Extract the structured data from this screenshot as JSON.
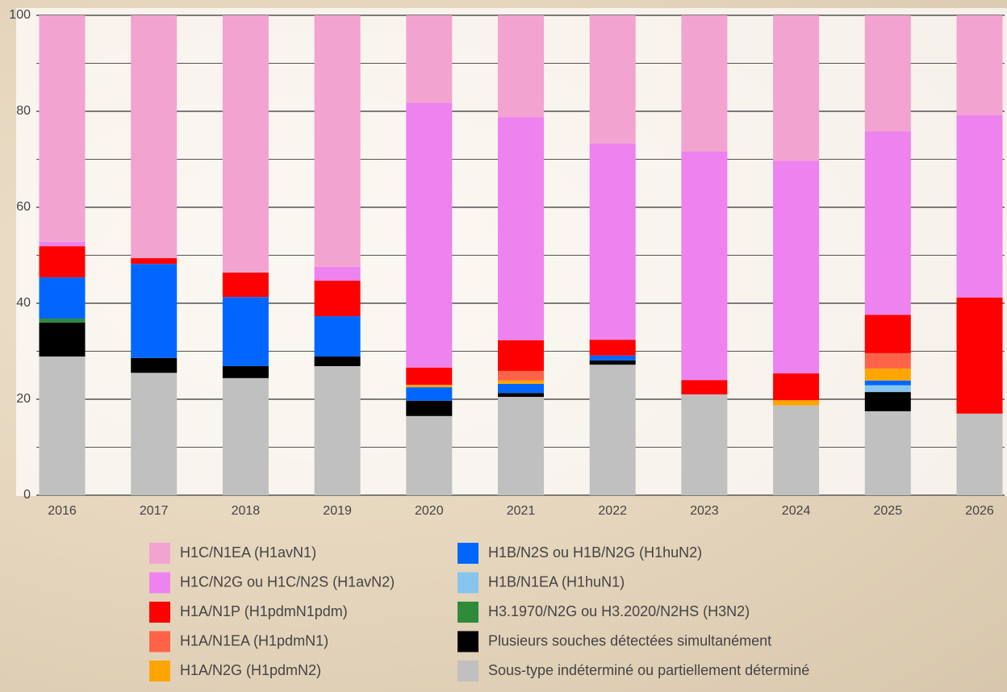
{
  "chart_data": {
    "type": "stacked_bar",
    "categories": [
      "2016",
      "2017",
      "2018",
      "2019",
      "2020",
      "2021",
      "2022",
      "2023",
      "2024",
      "2025",
      "2026"
    ],
    "ylim": [
      0,
      100
    ],
    "yticks": [
      0,
      20,
      40,
      60,
      80,
      100
    ],
    "yminor": [
      10,
      30,
      50,
      70,
      90
    ],
    "grid": true,
    "series": [
      {
        "name": "H1C/N1EA (H1avN1)",
        "color": "#f2a3d0",
        "values": [
          47.2,
          50.6,
          53.6,
          52.4,
          18.2,
          21.2,
          26.7,
          28.4,
          30.3,
          24.2,
          20.8
        ]
      },
      {
        "name": "H1C/N2G ou H1C/N2S (H1avN2)",
        "color": "#ee82ee",
        "values": [
          0.9,
          0,
          0,
          2.9,
          55.2,
          46.5,
          40.9,
          47.6,
          44.3,
          38.2,
          38.0
        ]
      },
      {
        "name": "H1A/N1P (H1pdmN1pdm)",
        "color": "#ff0000",
        "values": [
          6.5,
          1.2,
          5.1,
          7.4,
          3.6,
          6.4,
          3.3,
          3.0,
          5.6,
          8.0,
          24.2
        ]
      },
      {
        "name": "H1A/N1EA (H1pdmN1)",
        "color": "#ff6347",
        "values": [
          0,
          0,
          0,
          0,
          0,
          2.0,
          0,
          0,
          0,
          3.2,
          0
        ]
      },
      {
        "name": "H1A/N2G (H1pdmN2)",
        "color": "#ffa500",
        "values": [
          0,
          0,
          0,
          0,
          0.5,
          0.7,
          0,
          0,
          1.1,
          2.5,
          0
        ]
      },
      {
        "name": "H1B/N2S ou H1B/N2G (H1huN2)",
        "color": "#0066ff",
        "values": [
          8.6,
          19.6,
          14.4,
          8.4,
          2.8,
          1.9,
          1.0,
          0,
          0,
          1.0,
          0
        ]
      },
      {
        "name": "H1B/N1EA (H1huN1)",
        "color": "#87c5ec",
        "values": [
          0,
          0,
          0,
          0,
          0,
          0,
          0,
          0,
          0,
          1.4,
          0
        ]
      },
      {
        "name": "H3.1970/N2G ou H3.2020/N2HS (H3N2)",
        "color": "#2e8b3a",
        "values": [
          0.8,
          0,
          0,
          0,
          0,
          0,
          0,
          0,
          0,
          0,
          0
        ]
      },
      {
        "name": "Plusieurs souches détectées simultanément",
        "color": "#000000",
        "values": [
          7.1,
          3.1,
          2.5,
          2.0,
          3.2,
          0.8,
          0.9,
          0,
          0,
          4.0,
          0
        ]
      },
      {
        "name": "Sous-type indéterminé ou partiellement déterminé",
        "color": "#c0c0c0",
        "values": [
          28.9,
          25.5,
          24.4,
          26.9,
          16.5,
          20.5,
          27.2,
          21.0,
          18.7,
          17.5,
          17.0
        ]
      }
    ]
  }
}
